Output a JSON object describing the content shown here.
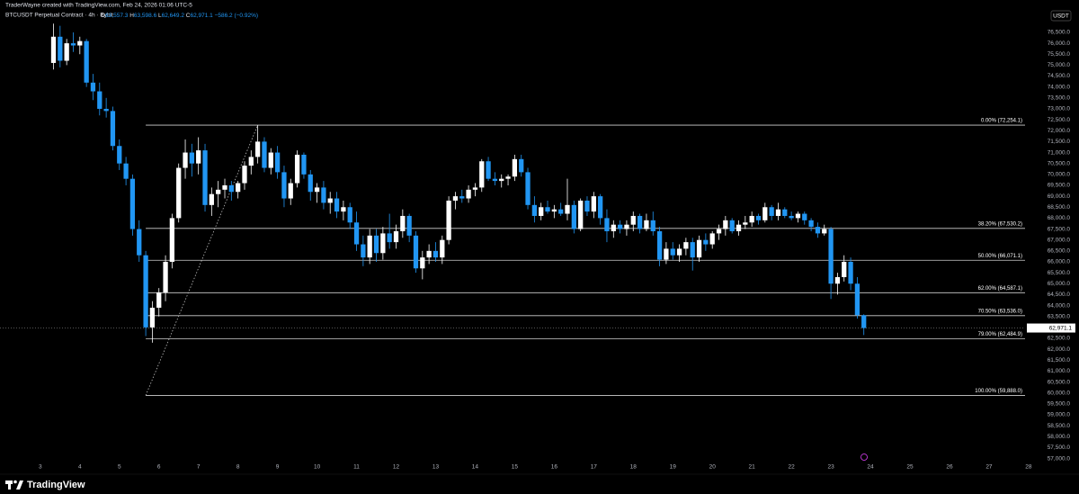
{
  "header": "TraderWayne created with TradingView.com, Feb 24, 2026 01:06 UTC-5",
  "symbol": "BTCUSDT Perpetual Contract · 4h · Bybit",
  "ohlc": [
    {
      "key": "O",
      "value": "63,557.3"
    },
    {
      "key": "H",
      "value": "63,598.6"
    },
    {
      "key": "L",
      "value": "62,649.2"
    },
    {
      "key": "C",
      "value": "62,971.1"
    }
  ],
  "change": "−586.2 (−0.92%)",
  "currency": "USDT",
  "brand": "TradingView",
  "chart_data": {
    "type": "candlestick",
    "up_color": "#ffffff",
    "down_color": "#2196f3",
    "x": [
      3.333,
      3.5,
      3.667,
      3.833,
      4,
      4.167,
      4.333,
      4.5,
      4.667,
      4.833,
      5,
      5.167,
      5.333,
      5.5,
      5.667,
      5.833,
      6,
      6.167,
      6.333,
      6.5,
      6.667,
      6.833,
      7,
      7.167,
      7.333,
      7.5,
      7.667,
      7.833,
      8,
      8.167,
      8.333,
      8.5,
      8.667,
      8.833,
      9,
      9.167,
      9.333,
      9.5,
      9.667,
      9.833,
      10,
      10.167,
      10.333,
      10.5,
      10.667,
      10.833,
      11,
      11.167,
      11.333,
      11.5,
      11.667,
      11.833,
      12,
      12.167,
      12.333,
      12.5,
      12.667,
      12.833,
      13,
      13.167,
      13.333,
      13.5,
      13.667,
      13.833,
      14,
      14.167,
      14.333,
      14.5,
      14.667,
      14.833,
      15,
      15.167,
      15.333,
      15.5,
      15.667,
      15.833,
      16,
      16.167,
      16.333,
      16.5,
      16.667,
      16.833,
      17,
      17.167,
      17.333,
      17.5,
      17.667,
      17.833,
      18,
      18.167,
      18.333,
      18.5,
      18.667,
      18.833,
      19,
      19.167,
      19.333,
      19.5,
      19.667,
      19.833,
      20,
      20.167,
      20.333,
      20.5,
      20.667,
      20.833,
      21,
      21.167,
      21.333,
      21.5,
      21.667,
      21.833,
      22,
      22.167,
      22.333,
      22.5,
      22.667,
      22.833,
      23,
      23.167,
      23.333,
      23.5,
      23.667,
      23.833
    ],
    "open": [
      75100,
      76300,
      75200,
      76000,
      75900,
      76100,
      74200,
      73800,
      73000,
      72900,
      71300,
      70500,
      69800,
      67500,
      66300,
      63000,
      63900,
      64600,
      66000,
      68000,
      70300,
      71000,
      70500,
      71100,
      68600,
      69100,
      69300,
      69500,
      69200,
      69600,
      70400,
      70800,
      71500,
      70300,
      71000,
      70100,
      68900,
      69600,
      70900,
      70000,
      69200,
      69400,
      68700,
      68900,
      68300,
      68500,
      67800,
      66800,
      66200,
      67200,
      66400,
      67300,
      66900,
      67400,
      68100,
      67200,
      65700,
      66200,
      66500,
      66200,
      67000,
      68800,
      69000,
      68900,
      69300,
      69400,
      70600,
      69800,
      69700,
      69800,
      69900,
      70700,
      70100,
      68600,
      68100,
      68500,
      68300,
      68400,
      68200,
      68600,
      67500,
      68800,
      68300,
      69000,
      68000,
      67400,
      67700,
      67500,
      67700,
      68100,
      67500,
      67900,
      67400,
      66100,
      66600,
      66300,
      66600,
      66900,
      66200,
      67000,
      66800,
      67300,
      67500,
      67900,
      67400,
      67700,
      67800,
      68100,
      67900,
      68500,
      68100,
      68400,
      68100,
      68000,
      68200,
      67900,
      67600,
      67300,
      67500,
      65000,
      65300,
      66000,
      65000,
      63557.3
    ],
    "high": [
      76900,
      76800,
      76200,
      76500,
      76300,
      76200,
      74600,
      74200,
      73500,
      73100,
      71600,
      70800,
      70000,
      67900,
      66500,
      64200,
      64800,
      66300,
      68200,
      70500,
      71600,
      71400,
      71700,
      71400,
      69400,
      69700,
      69800,
      69700,
      69700,
      70600,
      71100,
      72250,
      71700,
      71200,
      71300,
      70400,
      69800,
      71100,
      71000,
      70200,
      69600,
      69700,
      69200,
      69200,
      68800,
      68700,
      68300,
      67200,
      67500,
      67500,
      67600,
      68200,
      67700,
      68400,
      68200,
      67400,
      66500,
      66800,
      66900,
      67200,
      69000,
      69200,
      69300,
      69500,
      69600,
      70700,
      70800,
      70100,
      70000,
      70000,
      70900,
      70900,
      70300,
      69000,
      68700,
      68800,
      68600,
      68700,
      69800,
      68800,
      68900,
      69000,
      69200,
      69100,
      68400,
      67900,
      67900,
      67900,
      68300,
      68200,
      68200,
      68300,
      67600,
      66900,
      66900,
      66800,
      67100,
      67100,
      67200,
      67300,
      67400,
      67700,
      68100,
      68000,
      67900,
      68100,
      68300,
      68200,
      68700,
      68600,
      68700,
      68500,
      68300,
      68300,
      68300,
      68000,
      67800,
      67700,
      67600,
      65500,
      66300,
      66200,
      65300,
      63598.6
    ],
    "low": [
      74800,
      74900,
      75000,
      75600,
      75500,
      74000,
      73400,
      72700,
      72600,
      71100,
      70200,
      69500,
      67200,
      66000,
      62600,
      62300,
      63500,
      64200,
      65700,
      67800,
      69800,
      69900,
      70000,
      68300,
      68100,
      68500,
      68900,
      68800,
      68900,
      69300,
      70000,
      70500,
      70100,
      70000,
      69800,
      68500,
      68600,
      69400,
      69800,
      68800,
      68700,
      68400,
      68200,
      68000,
      67900,
      67500,
      66500,
      65800,
      65900,
      66000,
      66100,
      66600,
      66600,
      67100,
      66900,
      65500,
      65200,
      65900,
      66000,
      65900,
      66800,
      68400,
      68700,
      68700,
      69000,
      69200,
      69700,
      69500,
      69400,
      69500,
      69700,
      69900,
      68400,
      67800,
      67900,
      68200,
      68000,
      68100,
      67900,
      67300,
      67400,
      68100,
      68000,
      67700,
      66900,
      67100,
      67300,
      67200,
      67400,
      67300,
      67400,
      67200,
      65800,
      65900,
      66100,
      66000,
      66300,
      65600,
      66000,
      66500,
      66600,
      67000,
      67200,
      67300,
      67200,
      67500,
      67600,
      67700,
      67800,
      67900,
      67900,
      68000,
      67900,
      67800,
      67700,
      67400,
      67100,
      67200,
      64300,
      64500,
      65100,
      64700,
      63400,
      62649.2
    ],
    "close": [
      76300,
      75200,
      76000,
      75900,
      76100,
      74200,
      73800,
      73000,
      72900,
      71300,
      70500,
      69800,
      67500,
      66300,
      63000,
      63900,
      64600,
      66000,
      68000,
      70300,
      71000,
      70500,
      71100,
      68600,
      69100,
      69300,
      69500,
      69200,
      69600,
      70400,
      70800,
      71500,
      70300,
      71000,
      70100,
      68900,
      69600,
      70900,
      70000,
      69200,
      69400,
      68700,
      68900,
      68300,
      68500,
      67800,
      66800,
      66200,
      67200,
      66400,
      67300,
      66900,
      67400,
      68100,
      67200,
      65700,
      66200,
      66500,
      66200,
      67000,
      68800,
      69000,
      68900,
      69300,
      69400,
      70600,
      69800,
      69700,
      69800,
      69900,
      70700,
      70100,
      68600,
      68100,
      68500,
      68300,
      68400,
      68200,
      68600,
      67500,
      68800,
      68300,
      69000,
      68000,
      67400,
      67700,
      67500,
      67700,
      68100,
      67500,
      67900,
      67400,
      66100,
      66600,
      66300,
      66600,
      66900,
      66200,
      67000,
      66800,
      67300,
      67500,
      67900,
      67400,
      67700,
      67800,
      68100,
      67900,
      68500,
      68100,
      68400,
      68100,
      68000,
      68200,
      67900,
      67600,
      67300,
      67500,
      65000,
      65300,
      66000,
      65000,
      63557.3,
      62971.1
    ],
    "xlim": [
      1.98,
      28.48
    ],
    "xticks": [
      3,
      4,
      5,
      6,
      7,
      8,
      9,
      10,
      11,
      12,
      13,
      14,
      15,
      16,
      17,
      18,
      19,
      20,
      21,
      22,
      23,
      24,
      25,
      26,
      27,
      28
    ],
    "ylim": [
      56900,
      77980
    ],
    "yticks": [
      {
        "value": 76500,
        "label": "76,500.0"
      },
      {
        "value": 76000,
        "label": "76,000.0"
      },
      {
        "value": 75500,
        "label": "75,500.0"
      },
      {
        "value": 75000,
        "label": "75,000.0"
      },
      {
        "value": 74500,
        "label": "74,500.0"
      },
      {
        "value": 74000,
        "label": "74,000.0"
      },
      {
        "value": 73500,
        "label": "73,500.0"
      },
      {
        "value": 73000,
        "label": "73,000.0"
      },
      {
        "value": 72500,
        "label": "72,500.0"
      },
      {
        "value": 72000,
        "label": "72,000.0"
      },
      {
        "value": 71500,
        "label": "71,500.0"
      },
      {
        "value": 71000,
        "label": "71,000.0"
      },
      {
        "value": 70500,
        "label": "70,500.0"
      },
      {
        "value": 70000,
        "label": "70,000.0"
      },
      {
        "value": 69500,
        "label": "69,500.0"
      },
      {
        "value": 69000,
        "label": "69,000.0"
      },
      {
        "value": 68500,
        "label": "68,500.0"
      },
      {
        "value": 68000,
        "label": "68,000.0"
      },
      {
        "value": 67500,
        "label": "67,500.0"
      },
      {
        "value": 67000,
        "label": "67,000.0"
      },
      {
        "value": 66500,
        "label": "66,500.0"
      },
      {
        "value": 66000,
        "label": "66,000.0"
      },
      {
        "value": 65500,
        "label": "65,500.0"
      },
      {
        "value": 65000,
        "label": "65,000.0"
      },
      {
        "value": 64500,
        "label": "64,500.0"
      },
      {
        "value": 64000,
        "label": "64,000.0"
      },
      {
        "value": 63500,
        "label": "63,500.0"
      },
      {
        "value": 63000,
        "label": "63,000.0"
      },
      {
        "value": 62500,
        "label": "62,500.0"
      },
      {
        "value": 62000,
        "label": "62,000.0"
      },
      {
        "value": 61500,
        "label": "61,500.0"
      },
      {
        "value": 61000,
        "label": "61,000.0"
      },
      {
        "value": 60500,
        "label": "60,500.0"
      },
      {
        "value": 60000,
        "label": "60,000.0"
      },
      {
        "value": 59500,
        "label": "59,500.0"
      },
      {
        "value": 59000,
        "label": "59,000.0"
      },
      {
        "value": 58500,
        "label": "58,500.0"
      },
      {
        "value": 58000,
        "label": "58,000.0"
      },
      {
        "value": 57500,
        "label": "57,500.0"
      },
      {
        "value": 57000,
        "label": "57,000.0"
      }
    ],
    "last_price": {
      "value": 62971.1,
      "label": "62,971.1"
    },
    "fib_x": [
      5.667,
      8.5
    ],
    "fib_levels": [
      {
        "value": 72254.1,
        "label": "0.00% (72,254.1)"
      },
      {
        "value": 67530.2,
        "label": "38.20% (67,530.2)"
      },
      {
        "value": 66071.1,
        "label": "50.00% (66,071.1)"
      },
      {
        "value": 64587.1,
        "label": "62.00% (64,587.1)"
      },
      {
        "value": 63536.0,
        "label": "70.50% (63,536.0)"
      },
      {
        "value": 62484.9,
        "label": "79.00% (62,484.9)"
      },
      {
        "value": 59888.0,
        "label": "100.00% (59,888.0)"
      }
    ]
  }
}
